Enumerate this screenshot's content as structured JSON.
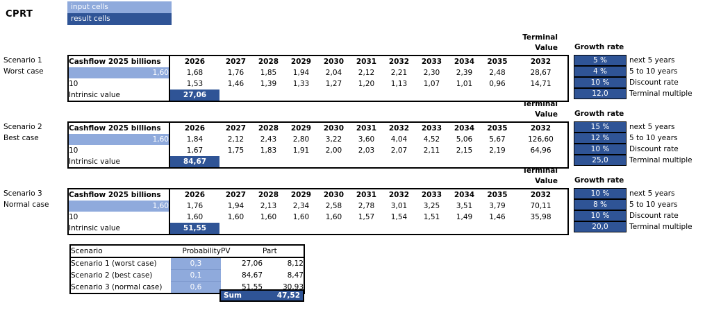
{
  "ticker": "CPRT",
  "legend": {
    "input_label": "input cells",
    "result_label": "result cells"
  },
  "colors": {
    "input_cell": "#8FAADC",
    "result_cell": "#2F5496",
    "border": "#000000",
    "background": "#FFFFFF"
  },
  "years": [
    "2026",
    "2027",
    "2028",
    "2029",
    "2030",
    "2031",
    "2032",
    "2033",
    "2034",
    "2035"
  ],
  "labels": {
    "terminal_line1": "Terminal",
    "terminal_line2": "Value",
    "terminal_year": "2032",
    "growth_rate": "Growth rate",
    "rate_labels": [
      "next 5 years",
      "5 to 10 years",
      "Discount rate",
      "Terminal multiple"
    ]
  },
  "scenarios": [
    {
      "name": "Scenario 1",
      "case_label": "Worst case",
      "table_header": "Cashflow 2025 billions",
      "base_cashflow": "1,60",
      "discount_label": "10",
      "intrinsic_label": "Intrinsic value",
      "growth_row": [
        "1,68",
        "1,76",
        "1,85",
        "1,94",
        "2,04",
        "2,12",
        "2,21",
        "2,30",
        "2,39",
        "2,48"
      ],
      "terminal_growth": "28,67",
      "discounted_row": [
        "1,53",
        "1,46",
        "1,39",
        "1,33",
        "1,27",
        "1,20",
        "1,13",
        "1,07",
        "1,01",
        "0,96"
      ],
      "terminal_discounted": "14,71",
      "intrinsic_value": "27,06",
      "rates": [
        "5 %",
        "4 %",
        "10 %",
        "12,0"
      ]
    },
    {
      "name": "Scenario 2",
      "case_label": "Best case",
      "table_header": "Cashflow 2025 billions",
      "base_cashflow": "1,60",
      "discount_label": "10",
      "intrinsic_label": "Intrinsic value",
      "growth_row": [
        "1,84",
        "2,12",
        "2,43",
        "2,80",
        "3,22",
        "3,60",
        "4,04",
        "4,52",
        "5,06",
        "5,67"
      ],
      "terminal_growth": "126,60",
      "discounted_row": [
        "1,67",
        "1,75",
        "1,83",
        "1,91",
        "2,00",
        "2,03",
        "2,07",
        "2,11",
        "2,15",
        "2,19"
      ],
      "terminal_discounted": "64,96",
      "intrinsic_value": "84,67",
      "rates": [
        "15 %",
        "12 %",
        "10 %",
        "25,0"
      ]
    },
    {
      "name": "Scenario 3",
      "case_label": "Normal case",
      "table_header": "Cashflow 2025 billions",
      "base_cashflow": "1,60",
      "discount_label": "10",
      "intrinsic_label": "Intrinsic value",
      "growth_row": [
        "1,76",
        "1,94",
        "2,13",
        "2,34",
        "2,58",
        "2,78",
        "3,01",
        "3,25",
        "3,51",
        "3,79"
      ],
      "terminal_growth": "70,11",
      "discounted_row": [
        "1,60",
        "1,60",
        "1,60",
        "1,60",
        "1,60",
        "1,57",
        "1,54",
        "1,51",
        "1,49",
        "1,46"
      ],
      "terminal_discounted": "35,98",
      "intrinsic_value": "51,55",
      "rates": [
        "10 %",
        "8 %",
        "10 %",
        "20,0"
      ]
    }
  ],
  "summary": {
    "headers": [
      "Scenario",
      "Probability",
      "PV",
      "Part"
    ],
    "rows": [
      {
        "label": "Scenario 1 (worst case)",
        "probability": "0,3",
        "pv": "27,06",
        "part": "8,12"
      },
      {
        "label": "Scenario 2 (best case)",
        "probability": "0,1",
        "pv": "84,67",
        "part": "8,47"
      },
      {
        "label": "Scenario 3 (normal case)",
        "probability": "0,6",
        "pv": "51,55",
        "part": "30,93"
      }
    ],
    "sum_label": "Sum",
    "sum_value": "47,52"
  }
}
